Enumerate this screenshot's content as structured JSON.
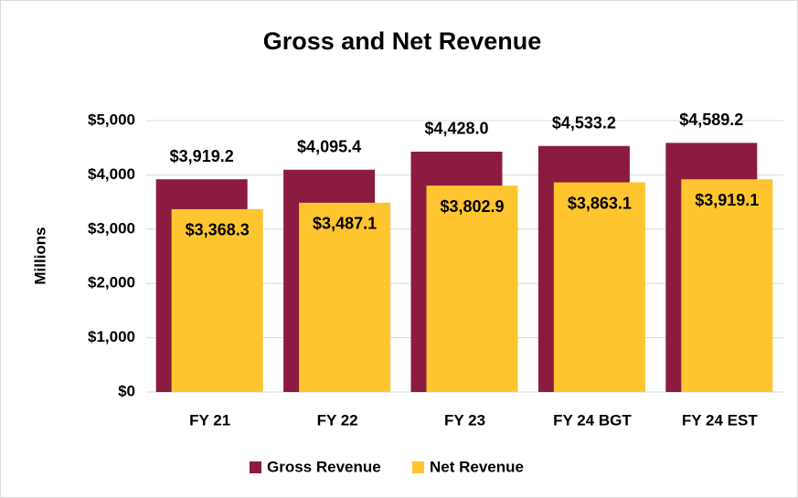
{
  "chart_data": {
    "type": "bar",
    "title": "Gross and Net Revenue",
    "y_label": "Millions",
    "categories": [
      "FY 21",
      "FY 22",
      "FY 23",
      "FY 24 BGT",
      "FY 24 EST"
    ],
    "series": [
      {
        "name": "Gross Revenue",
        "color": "#8b1c3f",
        "values": [
          3919.2,
          4095.4,
          4428.0,
          4533.2,
          4589.2
        ],
        "value_labels": [
          "$3,919.2",
          "$4,095.4",
          "$4,428.0",
          "$4,533.2",
          "$4,589.2"
        ]
      },
      {
        "name": "Net Revenue",
        "color": "#fec52e",
        "values": [
          3368.3,
          3487.1,
          3802.9,
          3863.1,
          3919.1
        ],
        "value_labels": [
          "$3,368.3",
          "$3,487.1",
          "$3,802.9",
          "$3,863.1",
          "$3,919.1"
        ]
      }
    ],
    "ylim": [
      0,
      5000
    ],
    "yticks": [
      {
        "value": 0,
        "label": "$0"
      },
      {
        "value": 1000,
        "label": "$1,000"
      },
      {
        "value": 2000,
        "label": "$2,000"
      },
      {
        "value": 3000,
        "label": "$3,000"
      },
      {
        "value": 4000,
        "label": "$4,000"
      },
      {
        "value": 5000,
        "label": "$5,000"
      }
    ],
    "grid": true,
    "legend": "bottom"
  }
}
